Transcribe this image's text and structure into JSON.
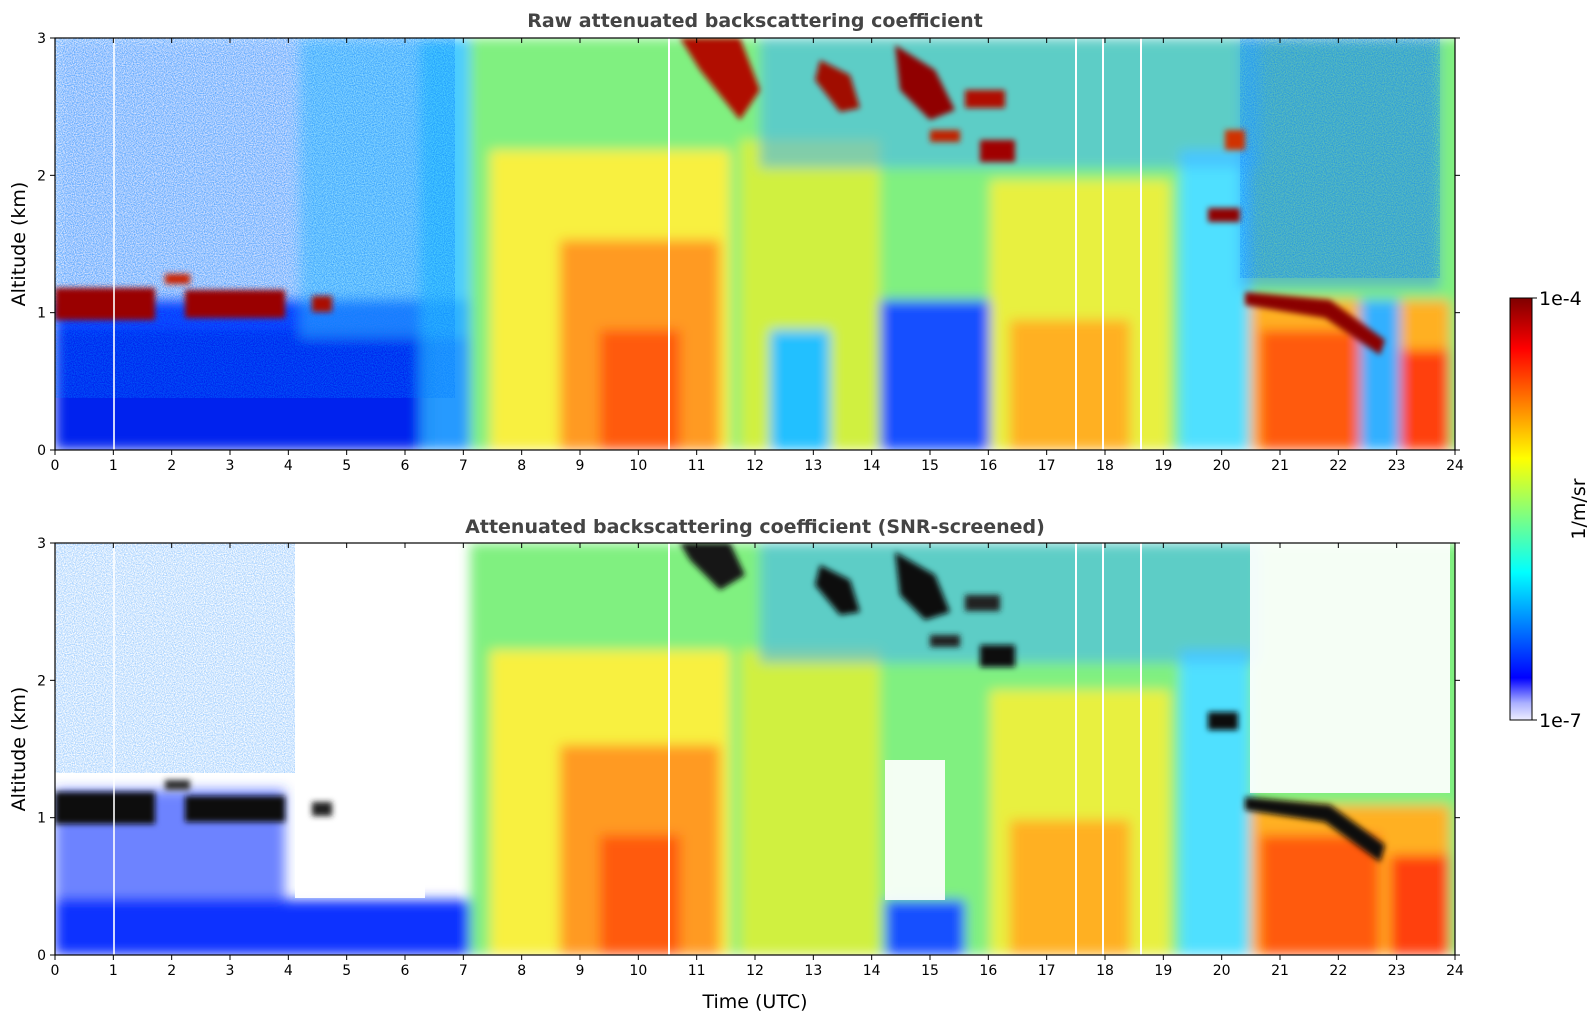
{
  "chart_data": [
    {
      "type": "heatmap",
      "title": "Raw attenuated backscattering coefficient",
      "xlabel": "",
      "ylabel": "Altitude (km)",
      "xlim": [
        0,
        24
      ],
      "ylim": [
        0,
        3
      ],
      "xticks": [
        "0",
        "1",
        "2",
        "3",
        "4",
        "5",
        "6",
        "7",
        "8",
        "9",
        "10",
        "11",
        "12",
        "13",
        "14",
        "15",
        "16",
        "17",
        "18",
        "19",
        "20",
        "21",
        "22",
        "23",
        "24"
      ],
      "yticks": [
        "0",
        "1",
        "2",
        "3"
      ],
      "features": [
        {
          "name": "low cloud layer",
          "t": [
            0.0,
            4.8
          ],
          "alt": [
            0.95,
            1.25
          ],
          "level": "1e-4"
        },
        {
          "name": "boundary layer aerosol",
          "t": [
            7.5,
            10.5
          ],
          "alt": [
            0.0,
            1.5
          ],
          "level": "high"
        },
        {
          "name": "upper cloud",
          "t": [
            10.5,
            16.5
          ],
          "alt": [
            2.1,
            3.0
          ],
          "level": "1e-4"
        },
        {
          "name": "cloud at 1.7 km",
          "t": [
            19.8,
            20.4
          ],
          "alt": [
            1.65,
            1.8
          ],
          "level": "1e-4"
        },
        {
          "name": "descending cloud base",
          "t": [
            20.5,
            22.9
          ],
          "alt": [
            0.7,
            1.15
          ],
          "level": "1e-4"
        }
      ]
    },
    {
      "type": "heatmap",
      "title": "Attenuated backscattering coefficient (SNR-screened)",
      "xlabel": "Time (UTC)",
      "ylabel": "Altitude (km)",
      "xlim": [
        0,
        24
      ],
      "ylim": [
        0,
        3
      ],
      "xticks": [
        "0",
        "1",
        "2",
        "3",
        "4",
        "5",
        "6",
        "7",
        "8",
        "9",
        "10",
        "11",
        "12",
        "13",
        "14",
        "15",
        "16",
        "17",
        "18",
        "19",
        "20",
        "21",
        "22",
        "23",
        "24"
      ],
      "yticks": [
        "0",
        "1",
        "2",
        "3"
      ],
      "features": [
        {
          "name": "low cloud layer",
          "t": [
            0.0,
            4.8
          ],
          "alt": [
            0.95,
            1.25
          ],
          "level": "saturated"
        },
        {
          "name": "screened region",
          "t": [
            4.0,
            6.5
          ],
          "alt": [
            0.3,
            3.0
          ],
          "level": "masked"
        },
        {
          "name": "upper cloud",
          "t": [
            10.5,
            16.5
          ],
          "alt": [
            2.1,
            3.0
          ],
          "level": "saturated"
        },
        {
          "name": "descending cloud base",
          "t": [
            20.5,
            22.9
          ],
          "alt": [
            0.7,
            1.15
          ],
          "level": "saturated"
        }
      ]
    }
  ],
  "colorbar": {
    "label": "1/m/sr",
    "max_label": "1e-4",
    "min_label": "1e-7",
    "colormap": [
      "#eeeeff",
      "#0000ff",
      "#00ffff",
      "#ffff00",
      "#ff0000",
      "#7f0000"
    ]
  }
}
